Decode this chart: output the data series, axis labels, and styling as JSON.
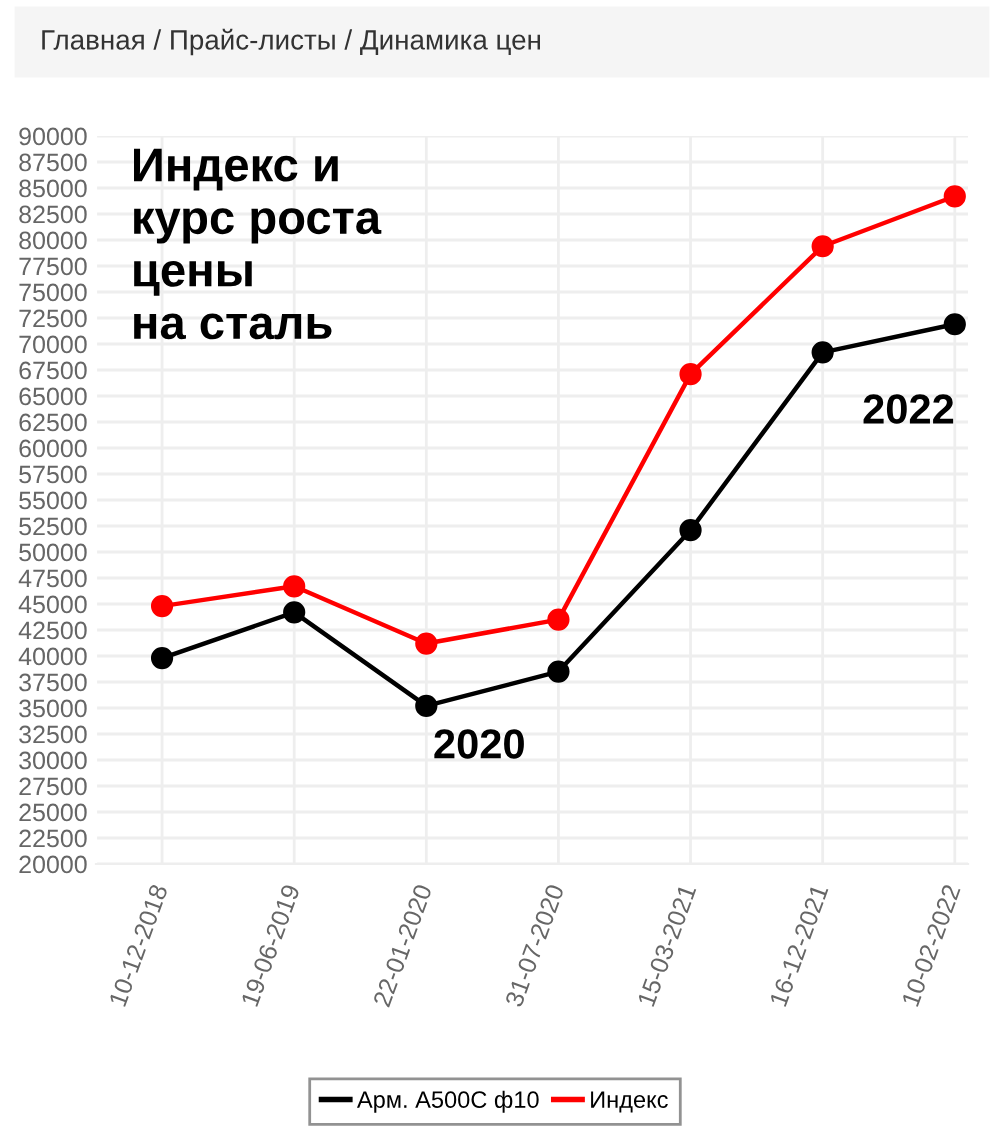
{
  "chart_data": {
    "type": "line",
    "title": "Индекс и\nкурс роста\nцены\nна сталь",
    "annotations": [
      "Главная / Прайс-листы / Динамика цен",
      "2020",
      "2022"
    ],
    "categories": [
      "10-12-2018",
      "19-06-2019",
      "22-01-2020",
      "31-07-2020",
      "15-03-2021",
      "16-12-2021",
      "10-02-2022"
    ],
    "series": [
      {
        "name": "Арм. А500С ф10",
        "color": "#000000",
        "values": [
          39800,
          44200,
          35200,
          38500,
          52100,
          69200,
          71900
        ]
      },
      {
        "name": "Индекс",
        "color": "#ff0000",
        "values": [
          44800,
          46700,
          41200,
          43500,
          67100,
          79400,
          84200
        ]
      }
    ],
    "ylim": [
      20000,
      90000
    ],
    "yticks": [
      20000,
      22500,
      25000,
      27500,
      30000,
      32500,
      35000,
      37500,
      40000,
      42500,
      45000,
      47500,
      50000,
      52500,
      55000,
      57500,
      60000,
      62500,
      65000,
      67500,
      70000,
      72500,
      75000,
      77500,
      80000,
      82500,
      85000,
      87500,
      90000
    ],
    "grid": true,
    "legend": "bottom",
    "marker": "circle",
    "line_style": "solid"
  }
}
